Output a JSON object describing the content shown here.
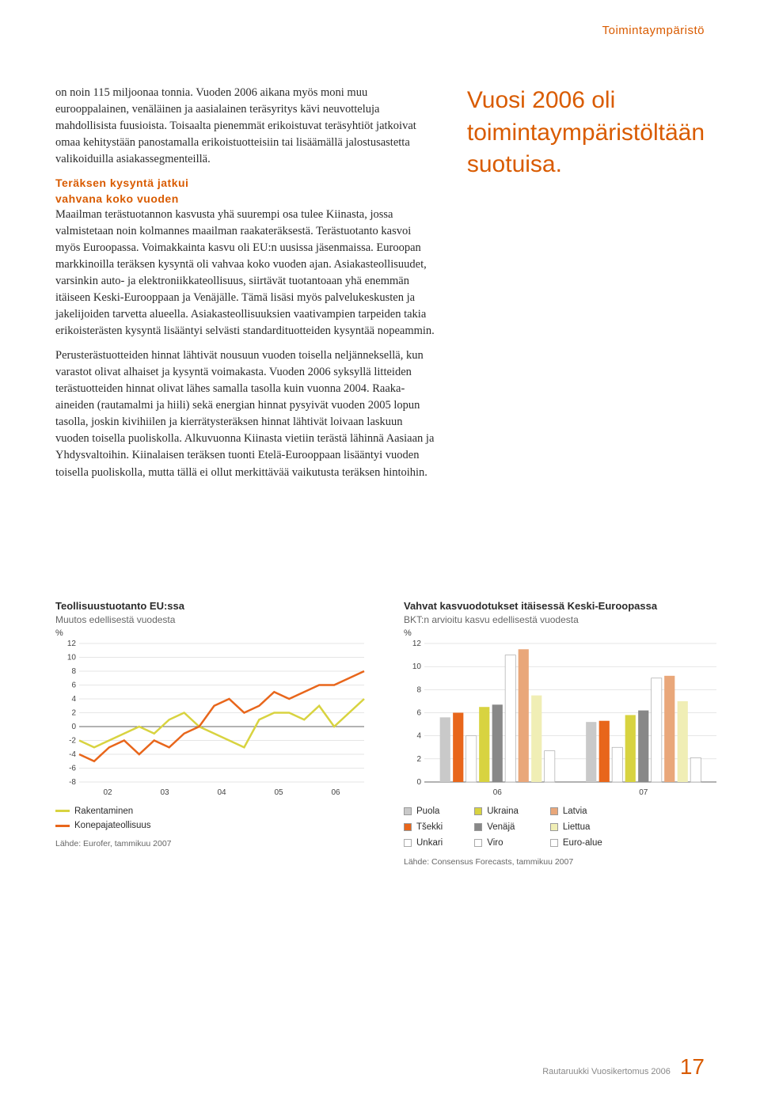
{
  "header": {
    "section": "Toimintaympäristö"
  },
  "body": {
    "para1": "on noin 115 miljoonaa tonnia. Vuoden 2006 aikana myös moni muu eurooppalainen, venäläinen ja aasialainen teräsyritys kävi neuvotteluja mahdollisista fuusioista. Toisaalta pienemmät erikoistuvat teräsyhtiöt jatkoivat omaa kehitystään panostamalla erikoistuotteisiin tai lisäämällä jalostusastetta valikoiduilla asiakassegmenteillä.",
    "subhead1a": "Teräksen kysyntä jatkui",
    "subhead1b": "vahvana koko vuoden",
    "para2": "Maailman terästuotannon kasvusta yhä suurempi osa tulee Kiinasta, jossa valmistetaan noin kolmannes maailman raakateräksestä. Terästuotanto kasvoi myös Euroopassa. Voimakkainta kasvu oli EU:n uusissa jäsenmaissa. Euroopan markkinoilla teräksen kysyntä oli vahvaa koko vuoden ajan. Asiakasteollisuudet, varsinkin auto- ja elektroniikkateollisuus, siirtävät tuotantoaan yhä enemmän itäiseen Keski-Eurooppaan ja Venäjälle. Tämä lisäsi myös palvelukeskusten ja jakelijoiden tarvetta alueella. Asiakasteollisuuksien vaativampien tarpeiden takia erikoisterästen kysyntä lisääntyi selvästi standardituotteiden kysyntää nopeammin.",
    "para3": "Perusterästuotteiden hinnat lähtivät nousuun vuoden toisella neljänneksellä, kun varastot olivat alhaiset ja kysyntä voimakasta. Vuoden 2006 syksyllä litteiden terästuotteiden hinnat olivat lähes samalla tasolla kuin vuonna 2004. Raaka-aineiden (rautamalmi ja hiili) sekä energian hinnat pysyivät vuoden 2005 lopun tasolla, joskin kivihiilen ja kierrätysteräksen hinnat lähtivät loivaan laskuun vuoden toisella puoliskolla. Alkuvuonna Kiinasta vietiin terästä lähinnä Aasiaan ja Yhdysvaltoihin. Kiinalaisen teräksen tuonti Etelä-Eurooppaan lisääntyi vuoden toisella puoliskolla, mutta tällä ei ollut merkittävää vaikutusta teräksen hintoihin."
  },
  "callout": "Vuosi 2006 oli toimintaympäristöltään suotuisa.",
  "chart1": {
    "title": "Teollisuustuotanto EU:ssa",
    "subtitle": "Muutos edellisestä vuodesta",
    "unit": "%",
    "ylim": [
      -8,
      12
    ],
    "yticks": [
      12,
      10,
      8,
      6,
      4,
      2,
      0,
      -2,
      -4,
      -6,
      -8
    ],
    "xticks": [
      "02",
      "03",
      "04",
      "05",
      "06"
    ],
    "series": {
      "rakentaminen": {
        "label": "Rakentaminen",
        "color": "#d8d340",
        "points": [
          -2,
          -3,
          -2,
          -1,
          0,
          -1,
          1,
          2,
          0,
          -1,
          -2,
          -3,
          1,
          2,
          2,
          1,
          3,
          0,
          2,
          4
        ]
      },
      "konepaja": {
        "label": "Konepajateollisuus",
        "color": "#e8661b",
        "points": [
          -4,
          -5,
          -3,
          -2,
          -4,
          -2,
          -3,
          -1,
          0,
          3,
          4,
          2,
          3,
          5,
          4,
          5,
          6,
          6,
          7,
          8
        ]
      }
    },
    "source": "Lähde: Eurofer, tammikuu 2007",
    "background": "#ffffff",
    "grid_color": "#cccccc",
    "line_width": 2.5
  },
  "chart2": {
    "title": "Vahvat kasvuodotukset itäisessä Keski-Euroopassa",
    "subtitle": "BKT:n arvioitu kasvu edellisestä vuodesta",
    "unit": "%",
    "ylim": [
      0,
      12
    ],
    "yticks": [
      12,
      10,
      8,
      6,
      4,
      2,
      0
    ],
    "groups": [
      "06",
      "07"
    ],
    "countries": [
      {
        "label": "Puola",
        "color": "#c9c9c9",
        "v": [
          5.6,
          5.2
        ]
      },
      {
        "label": "Tšekki",
        "color": "#e8661b",
        "v": [
          6.0,
          5.3
        ]
      },
      {
        "label": "Unkari",
        "color": "#ffffff",
        "border": "#aaa",
        "v": [
          4.0,
          3.0
        ]
      },
      {
        "label": "Ukraina",
        "color": "#d8d340",
        "v": [
          6.5,
          5.8
        ]
      },
      {
        "label": "Venäjä",
        "color": "#888888",
        "v": [
          6.7,
          6.2
        ]
      },
      {
        "label": "Viro",
        "color": "#ffffff",
        "border": "#aaa",
        "v": [
          11.0,
          9.0
        ]
      },
      {
        "label": "Latvia",
        "color": "#e9a77a",
        "v": [
          11.5,
          9.2
        ]
      },
      {
        "label": "Liettua",
        "color": "#f0eeb5",
        "v": [
          7.5,
          7.0
        ]
      },
      {
        "label": "Euro-alue",
        "color": "#ffffff",
        "border": "#aaa",
        "v": [
          2.7,
          2.1
        ]
      }
    ],
    "source": "Lähde: Consensus Forecasts, tammikuu 2007",
    "background": "#ffffff",
    "grid_color": "#cccccc",
    "bar_width": 0.8
  },
  "footer": {
    "doc": "Rautaruukki  Vuosikertomus 2006",
    "page": "17"
  }
}
